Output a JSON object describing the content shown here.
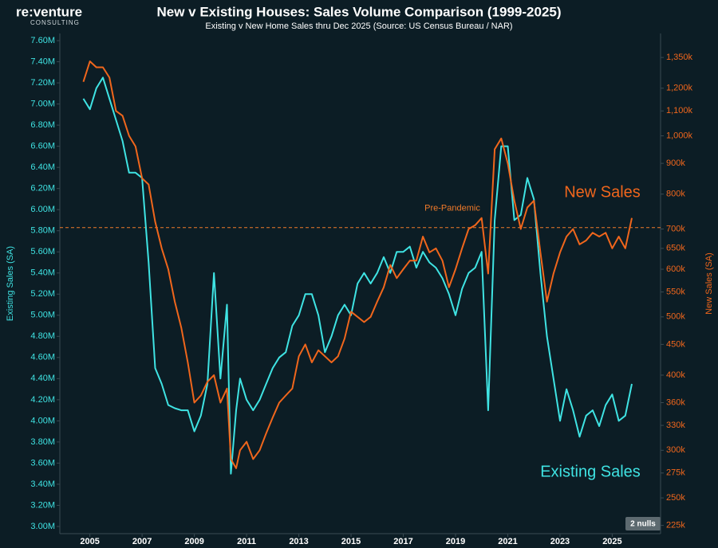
{
  "brand": {
    "name": "re:venture",
    "tagline": "CONSULTING"
  },
  "chart_data": {
    "type": "line",
    "title": "New v Existing Houses: Sales Volume Comparison (1999-2025)",
    "subtitle": "Existing v New Home Sales thru Dec 2025 (Source: US Census Bureau / NAR)",
    "y_label": "Existing Sales (SA)",
    "y2_label": "New Sales (SA)",
    "null_note": "2 nulls",
    "y2log": true,
    "xlim": [
      2003.85,
      2026.85
    ],
    "xticks": [
      2005,
      2007,
      2009,
      2011,
      2013,
      2015,
      2017,
      2019,
      2021,
      2023,
      2025
    ],
    "ylim": [
      2.932,
      7.668
    ],
    "yticks": [
      {
        "value": 7.6,
        "label": "7.60M"
      },
      {
        "value": 7.4,
        "label": "7.40M"
      },
      {
        "value": 7.2,
        "label": "7.20M"
      },
      {
        "value": 7.0,
        "label": "7.00M"
      },
      {
        "value": 6.8,
        "label": "6.80M"
      },
      {
        "value": 6.6,
        "label": "6.60M"
      },
      {
        "value": 6.4,
        "label": "6.40M"
      },
      {
        "value": 6.2,
        "label": "6.20M"
      },
      {
        "value": 6.0,
        "label": "6.00M"
      },
      {
        "value": 5.8,
        "label": "5.80M"
      },
      {
        "value": 5.6,
        "label": "5.60M"
      },
      {
        "value": 5.4,
        "label": "5.40M"
      },
      {
        "value": 5.2,
        "label": "5.20M"
      },
      {
        "value": 5.0,
        "label": "5.00M"
      },
      {
        "value": 4.8,
        "label": "4.80M"
      },
      {
        "value": 4.6,
        "label": "4.60M"
      },
      {
        "value": 4.4,
        "label": "4.40M"
      },
      {
        "value": 4.2,
        "label": "4.20M"
      },
      {
        "value": 4.0,
        "label": "4.00M"
      },
      {
        "value": 3.8,
        "label": "3.80M"
      },
      {
        "value": 3.6,
        "label": "3.60M"
      },
      {
        "value": 3.4,
        "label": "3.40M"
      },
      {
        "value": 3.2,
        "label": "3.20M"
      },
      {
        "value": 3.0,
        "label": "3.00M"
      }
    ],
    "y2lim": [
      218,
      1480
    ],
    "y2ticks": [
      {
        "value": 1350,
        "label": "1,350k"
      },
      {
        "value": 1200,
        "label": "1,200k"
      },
      {
        "value": 1100,
        "label": "1,100k"
      },
      {
        "value": 1000,
        "label": "1,000k"
      },
      {
        "value": 900,
        "label": "900k"
      },
      {
        "value": 800,
        "label": "800k"
      },
      {
        "value": 700,
        "label": "700k"
      },
      {
        "value": 650,
        "label": "650k"
      },
      {
        "value": 600,
        "label": "600k"
      },
      {
        "value": 550,
        "label": "550k"
      },
      {
        "value": 500,
        "label": "500k"
      },
      {
        "value": 450,
        "label": "450k"
      },
      {
        "value": 400,
        "label": "400k"
      },
      {
        "value": 360,
        "label": "360k"
      },
      {
        "value": 330,
        "label": "330k"
      },
      {
        "value": 300,
        "label": "300k"
      },
      {
        "value": 275,
        "label": "275k"
      },
      {
        "value": 250,
        "label": "250k"
      },
      {
        "value": 225,
        "label": "225k"
      }
    ],
    "reference_line": {
      "label": "Pre-Pandemic",
      "value": 5.83,
      "color": "#f07a2a"
    },
    "x": [
      2004.75,
      2005.0,
      2005.25,
      2005.5,
      2005.75,
      2006.0,
      2006.25,
      2006.5,
      2006.75,
      2007.0,
      2007.25,
      2007.5,
      2007.75,
      2008.0,
      2008.25,
      2008.5,
      2008.75,
      2009.0,
      2009.25,
      2009.5,
      2009.75,
      2010.0,
      2010.25,
      2010.4,
      2010.6,
      2010.75,
      2011.0,
      2011.25,
      2011.5,
      2011.75,
      2012.0,
      2012.25,
      2012.5,
      2012.75,
      2013.0,
      2013.25,
      2013.5,
      2013.75,
      2014.0,
      2014.25,
      2014.5,
      2014.75,
      2015.0,
      2015.25,
      2015.5,
      2015.75,
      2016.0,
      2016.25,
      2016.5,
      2016.75,
      2017.0,
      2017.25,
      2017.5,
      2017.75,
      2018.0,
      2018.25,
      2018.5,
      2018.75,
      2019.0,
      2019.25,
      2019.5,
      2019.75,
      2020.0,
      2020.25,
      2020.5,
      2020.75,
      2021.0,
      2021.25,
      2021.5,
      2021.75,
      2022.0,
      2022.25,
      2022.5,
      2022.75,
      2023.0,
      2023.25,
      2023.5,
      2023.75,
      2024.0,
      2024.25,
      2024.5,
      2024.75,
      2025.0,
      2025.25,
      2025.5,
      2025.75
    ],
    "series": [
      {
        "name": "Existing Sales",
        "color": "#3fe3e3",
        "axis": "y",
        "values": [
          7.05,
          6.95,
          7.15,
          7.25,
          7.05,
          6.85,
          6.65,
          6.35,
          6.35,
          6.3,
          5.5,
          4.5,
          4.35,
          4.15,
          4.12,
          4.1,
          4.1,
          3.9,
          4.05,
          4.35,
          5.4,
          4.4,
          5.1,
          3.5,
          4.1,
          4.4,
          4.2,
          4.1,
          4.2,
          4.35,
          4.5,
          4.6,
          4.65,
          4.9,
          5.0,
          5.2,
          5.2,
          5.0,
          4.65,
          4.8,
          5.0,
          5.1,
          5.0,
          5.3,
          5.4,
          5.3,
          5.4,
          5.55,
          5.4,
          5.6,
          5.6,
          5.65,
          5.45,
          5.6,
          5.5,
          5.45,
          5.35,
          5.2,
          5.0,
          5.25,
          5.4,
          5.45,
          5.6,
          4.1,
          5.9,
          6.6,
          6.6,
          5.9,
          5.95,
          6.3,
          6.1,
          5.4,
          4.8,
          4.4,
          4.0,
          4.3,
          4.1,
          3.85,
          4.05,
          4.1,
          3.95,
          4.15,
          4.25,
          4.0,
          4.05,
          4.35
        ]
      },
      {
        "name": "New Sales",
        "color": "#f0661c",
        "axis": "y2",
        "values": [
          1230,
          1330,
          1300,
          1300,
          1250,
          1100,
          1080,
          1000,
          960,
          850,
          830,
          720,
          650,
          600,
          530,
          480,
          420,
          360,
          370,
          390,
          400,
          360,
          380,
          290,
          280,
          300,
          310,
          290,
          300,
          320,
          340,
          360,
          370,
          380,
          430,
          450,
          420,
          440,
          430,
          420,
          430,
          460,
          510,
          500,
          490,
          500,
          530,
          560,
          610,
          580,
          600,
          620,
          620,
          680,
          640,
          650,
          620,
          560,
          600,
          650,
          700,
          710,
          730,
          590,
          950,
          990,
          900,
          780,
          700,
          760,
          780,
          640,
          530,
          590,
          640,
          680,
          700,
          660,
          670,
          690,
          680,
          690,
          650,
          680,
          650,
          730
        ]
      }
    ]
  }
}
